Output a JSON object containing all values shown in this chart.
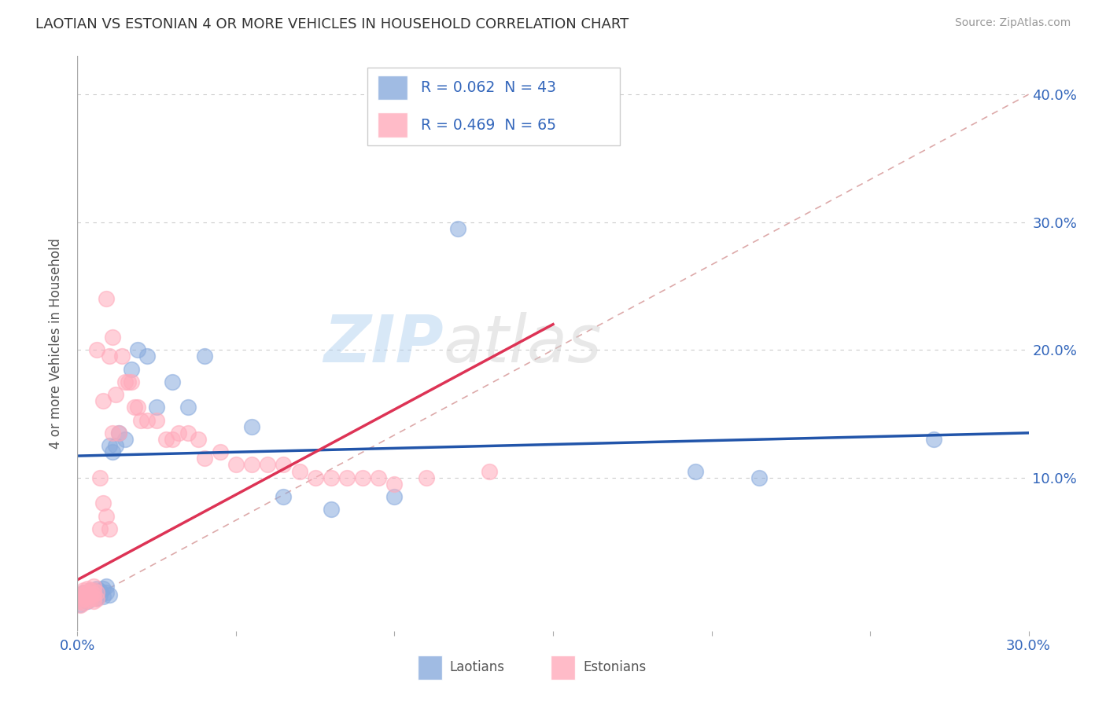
{
  "title": "LAOTIAN VS ESTONIAN 4 OR MORE VEHICLES IN HOUSEHOLD CORRELATION CHART",
  "source": "Source: ZipAtlas.com",
  "ylabel": "4 or more Vehicles in Household",
  "xlim": [
    0.0,
    0.3
  ],
  "ylim": [
    -0.02,
    0.43
  ],
  "laotian_R": 0.062,
  "laotian_N": 43,
  "estonian_R": 0.469,
  "estonian_N": 65,
  "laotian_color": "#88aadd",
  "estonian_color": "#ffaabb",
  "laotian_line_color": "#2255aa",
  "estonian_line_color": "#dd3355",
  "diagonal_color": "#ddaaaa",
  "grid_color": "#cccccc",
  "background_color": "#ffffff",
  "laotian_x": [
    0.001,
    0.001,
    0.002,
    0.002,
    0.003,
    0.003,
    0.004,
    0.004,
    0.004,
    0.005,
    0.005,
    0.005,
    0.005,
    0.006,
    0.006,
    0.006,
    0.007,
    0.007,
    0.008,
    0.008,
    0.009,
    0.009,
    0.01,
    0.01,
    0.011,
    0.012,
    0.013,
    0.015,
    0.017,
    0.019,
    0.022,
    0.025,
    0.03,
    0.035,
    0.04,
    0.055,
    0.065,
    0.08,
    0.1,
    0.12,
    0.195,
    0.215,
    0.27
  ],
  "laotian_y": [
    0.001,
    0.008,
    0.005,
    0.01,
    0.003,
    0.008,
    0.005,
    0.007,
    0.012,
    0.006,
    0.008,
    0.01,
    0.012,
    0.006,
    0.009,
    0.013,
    0.008,
    0.011,
    0.007,
    0.013,
    0.01,
    0.015,
    0.008,
    0.125,
    0.12,
    0.125,
    0.135,
    0.13,
    0.185,
    0.2,
    0.195,
    0.155,
    0.175,
    0.155,
    0.195,
    0.14,
    0.085,
    0.075,
    0.085,
    0.295,
    0.105,
    0.1,
    0.13
  ],
  "estonian_x": [
    0.001,
    0.001,
    0.001,
    0.001,
    0.002,
    0.002,
    0.002,
    0.002,
    0.002,
    0.003,
    0.003,
    0.003,
    0.003,
    0.004,
    0.004,
    0.004,
    0.005,
    0.005,
    0.005,
    0.005,
    0.005,
    0.006,
    0.006,
    0.006,
    0.007,
    0.007,
    0.008,
    0.008,
    0.009,
    0.009,
    0.01,
    0.01,
    0.011,
    0.011,
    0.012,
    0.013,
    0.014,
    0.015,
    0.016,
    0.017,
    0.018,
    0.019,
    0.02,
    0.022,
    0.025,
    0.028,
    0.03,
    0.032,
    0.035,
    0.038,
    0.04,
    0.045,
    0.05,
    0.055,
    0.06,
    0.065,
    0.07,
    0.075,
    0.08,
    0.085,
    0.09,
    0.095,
    0.1,
    0.11,
    0.13
  ],
  "estonian_y": [
    0.0,
    0.003,
    0.005,
    0.008,
    0.002,
    0.005,
    0.008,
    0.01,
    0.012,
    0.004,
    0.007,
    0.01,
    0.013,
    0.005,
    0.008,
    0.012,
    0.003,
    0.006,
    0.009,
    0.012,
    0.015,
    0.005,
    0.01,
    0.2,
    0.06,
    0.1,
    0.08,
    0.16,
    0.07,
    0.24,
    0.06,
    0.195,
    0.135,
    0.21,
    0.165,
    0.135,
    0.195,
    0.175,
    0.175,
    0.175,
    0.155,
    0.155,
    0.145,
    0.145,
    0.145,
    0.13,
    0.13,
    0.135,
    0.135,
    0.13,
    0.115,
    0.12,
    0.11,
    0.11,
    0.11,
    0.11,
    0.105,
    0.1,
    0.1,
    0.1,
    0.1,
    0.1,
    0.095,
    0.1,
    0.105
  ]
}
